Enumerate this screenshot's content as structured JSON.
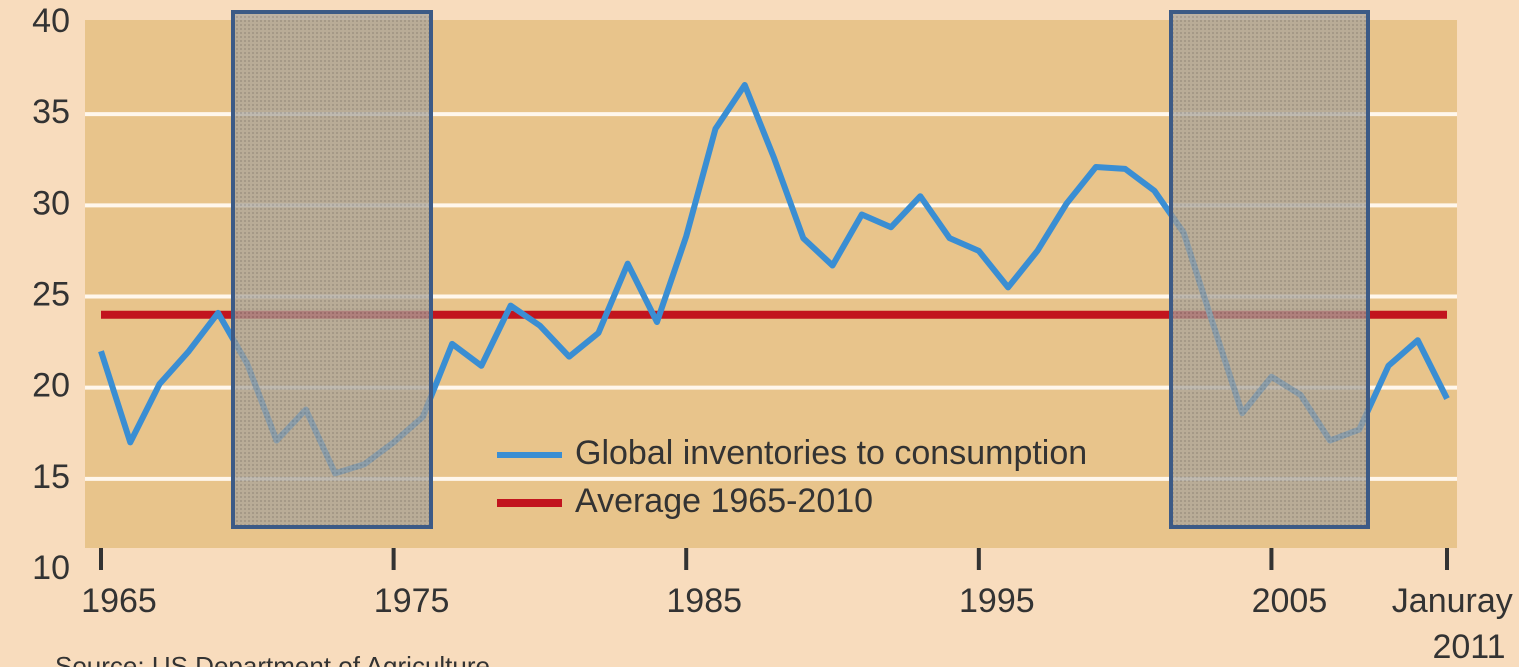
{
  "chart_data": {
    "type": "line",
    "x": [
      1965,
      1966,
      1967,
      1968,
      1969,
      1970,
      1971,
      1972,
      1973,
      1974,
      1975,
      1976,
      1977,
      1978,
      1979,
      1980,
      1981,
      1982,
      1983,
      1984,
      1985,
      1986,
      1987,
      1988,
      1989,
      1990,
      1991,
      1992,
      1993,
      1994,
      1995,
      1996,
      1997,
      1998,
      1999,
      2000,
      2001,
      2002,
      2003,
      2004,
      2005,
      2006,
      2007,
      2008,
      2009,
      2010,
      2011
    ],
    "series": [
      {
        "name": "Global inventories to consumption",
        "color": "#3a8ed3",
        "values": [
          22,
          17,
          20.2,
          22,
          24.1,
          21.3,
          17.1,
          18.8,
          15.3,
          15.8,
          17,
          18.4,
          22.4,
          21.2,
          24.5,
          23.4,
          21.7,
          23,
          26.8,
          23.6,
          28.3,
          34.2,
          36.6,
          32.6,
          28.2,
          26.7,
          29.5,
          28.8,
          30.5,
          28.2,
          27.5,
          25.5,
          27.5,
          30.1,
          32.1,
          32,
          30.8,
          28.5,
          23.5,
          18.6,
          20.6,
          19.6,
          17.1,
          17.7,
          21.2,
          22.6,
          19.4
        ]
      },
      {
        "name": "Average 1965-2010",
        "color": "#c2141e",
        "values": [
          24,
          24,
          24,
          24,
          24,
          24,
          24,
          24,
          24,
          24,
          24,
          24,
          24,
          24,
          24,
          24,
          24,
          24,
          24,
          24,
          24,
          24,
          24,
          24,
          24,
          24,
          24,
          24,
          24,
          24,
          24,
          24,
          24,
          24,
          24,
          24,
          24,
          24,
          24,
          24,
          24,
          24,
          24,
          24,
          24,
          24,
          24
        ]
      }
    ],
    "xlim": [
      1965,
      2011
    ],
    "xticks": [
      1965,
      1975,
      1985,
      1995,
      2005,
      {
        "value": 2011,
        "label": "Januray 2011"
      }
    ],
    "ylim": [
      10,
      40
    ],
    "yticks": [
      10,
      15,
      20,
      25,
      30,
      35,
      40
    ],
    "grid": true,
    "source": "Source: US Department of Agriculture"
  }
}
